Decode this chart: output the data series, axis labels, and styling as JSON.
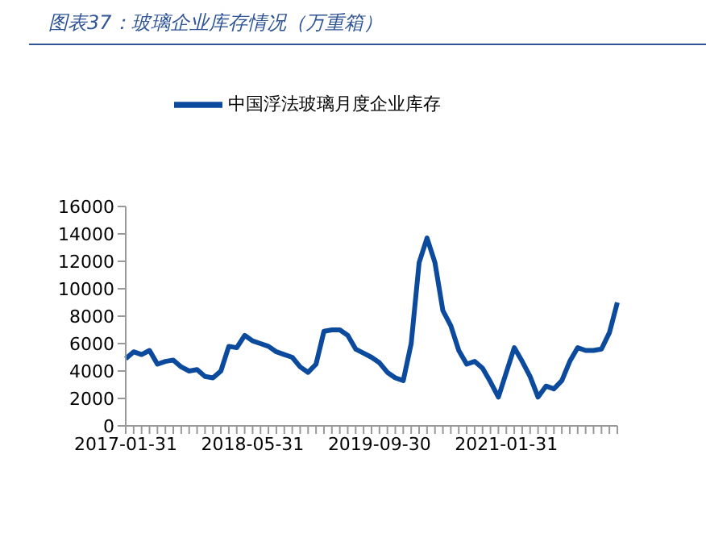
{
  "chart_data": {
    "type": "line",
    "title": "图表37：玻璃企业库存情况（万重箱）",
    "categories": [
      "2017-01-31",
      null,
      null,
      null,
      null,
      null,
      null,
      null,
      null,
      null,
      null,
      null,
      null,
      null,
      null,
      null,
      "2018-05-31",
      null,
      null,
      null,
      null,
      null,
      null,
      null,
      null,
      null,
      null,
      null,
      null,
      null,
      null,
      null,
      "2019-09-30",
      null,
      null,
      null,
      null,
      null,
      null,
      null,
      null,
      null,
      null,
      null,
      null,
      null,
      null,
      null,
      "2021-01-31",
      null,
      null,
      null,
      null,
      null,
      null,
      null,
      null,
      null,
      null,
      null,
      null,
      null,
      null
    ],
    "series": [
      {
        "name": "中国浮法玻璃月度企业库存",
        "color": "#0b4a9c",
        "values": [
          4900,
          5400,
          5200,
          5500,
          4500,
          4700,
          4800,
          4300,
          4000,
          4100,
          3600,
          3500,
          4000,
          5800,
          5700,
          6600,
          6200,
          6000,
          5800,
          5400,
          5200,
          5000,
          4300,
          3900,
          4500,
          6900,
          7000,
          7000,
          6600,
          5600,
          5300,
          5000,
          4600,
          3900,
          3500,
          3300,
          6000,
          11900,
          13700,
          11900,
          8400,
          7300,
          5500,
          4500,
          4700,
          4200,
          3200,
          2100,
          3900,
          5700,
          4700,
          3600,
          2100,
          2900,
          2700,
          3300,
          4700,
          5700,
          5500,
          5500,
          5600,
          6800,
          9000
        ]
      }
    ],
    "ylim": [
      0,
      16000
    ],
    "yticks": [
      0,
      2000,
      4000,
      6000,
      8000,
      10000,
      12000,
      14000,
      16000
    ],
    "legend": "top",
    "grid": false
  }
}
